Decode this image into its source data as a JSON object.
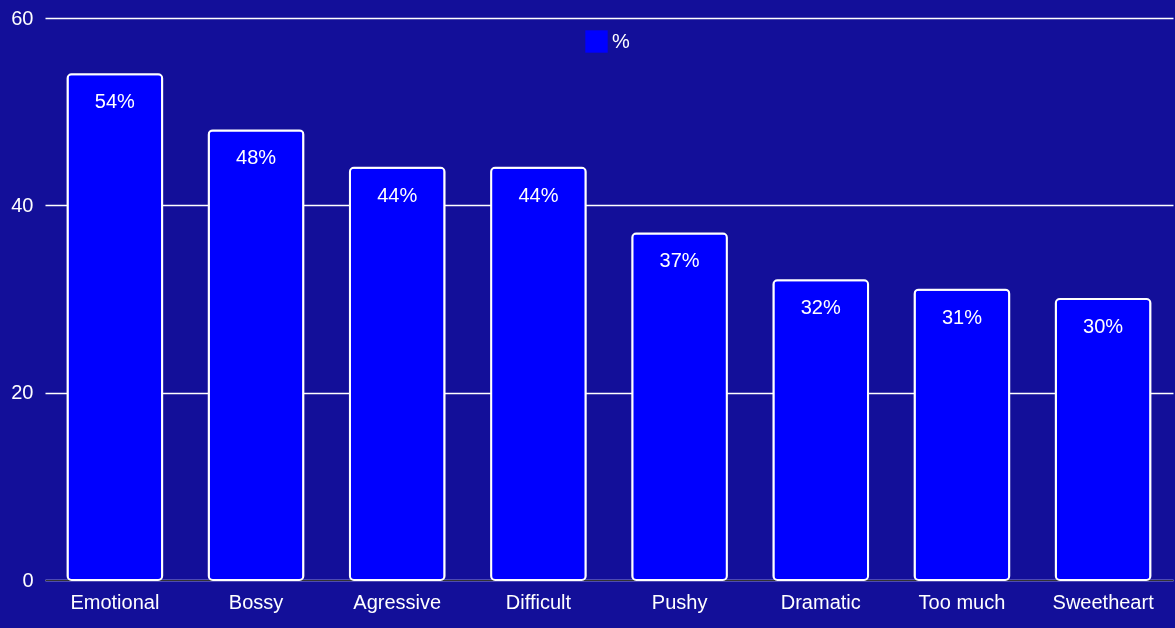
{
  "chart_data": {
    "type": "bar",
    "categories": [
      "Emotional",
      "Bossy",
      "Agressive",
      "Difficult",
      "Pushy",
      "Dramatic",
      "Too much",
      "Sweetheart"
    ],
    "series": [
      {
        "name": "%",
        "color": "#0000ff",
        "values": [
          54,
          48,
          44,
          44,
          37,
          32,
          31,
          30
        ],
        "value_labels": [
          "54%",
          "48%",
          "44%",
          "44%",
          "37%",
          "32%",
          "31%",
          "30%"
        ]
      }
    ],
    "ylim": [
      0,
      60
    ],
    "yticks": [
      0,
      20,
      40,
      60
    ],
    "grid": "y",
    "legend": "top"
  }
}
